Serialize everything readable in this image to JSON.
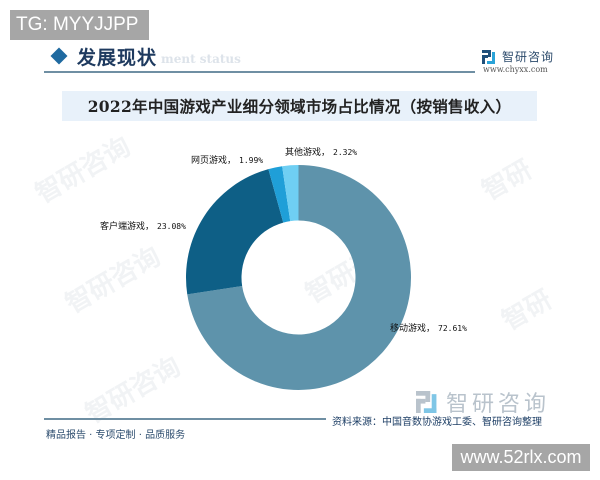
{
  "overlays": {
    "top_left_badge": "TG: MYYJJPP",
    "bottom_right_badge": "www.52rlx.com"
  },
  "header": {
    "section_title": "发展现状",
    "section_subtitle": "ment status",
    "brand_name": "智研咨询",
    "brand_url": "www.chyxx.com"
  },
  "chart_data": {
    "type": "pie",
    "variant": "donut",
    "title": "2022年中国游戏产业细分领域市场占比情况（按销售收入）",
    "unit": "%",
    "categories": [
      "移动游戏",
      "客户端游戏",
      "网页游戏",
      "其他游戏"
    ],
    "values": [
      72.61,
      23.08,
      1.99,
      2.32
    ],
    "labels": [
      "移动游戏，72.61%",
      "客户端游戏，23.08%",
      "网页游戏，1.99%",
      "其他游戏，2.32%"
    ],
    "colors": [
      "#5e93ab",
      "#0e5f86",
      "#1f9fd8",
      "#6fcff3"
    ],
    "start_angle": "12 o'clock",
    "direction": "clockwise",
    "legend": "none (data labels outside)"
  },
  "slices": [
    {
      "name": "移动游戏",
      "sep": "，",
      "pct": "72.61%"
    },
    {
      "name": "客户端游戏",
      "sep": "，",
      "pct": "23.08%"
    },
    {
      "name": "网页游戏",
      "sep": "，",
      "pct": "1.99%"
    },
    {
      "name": "其他游戏",
      "sep": "，",
      "pct": "2.32%"
    }
  ],
  "footer": {
    "source": "资料来源：中国音数协游戏工委、智研咨询整理",
    "tagline": "精品报告 · 专项定制 · 品质服务",
    "brand_name": "智研咨询"
  }
}
